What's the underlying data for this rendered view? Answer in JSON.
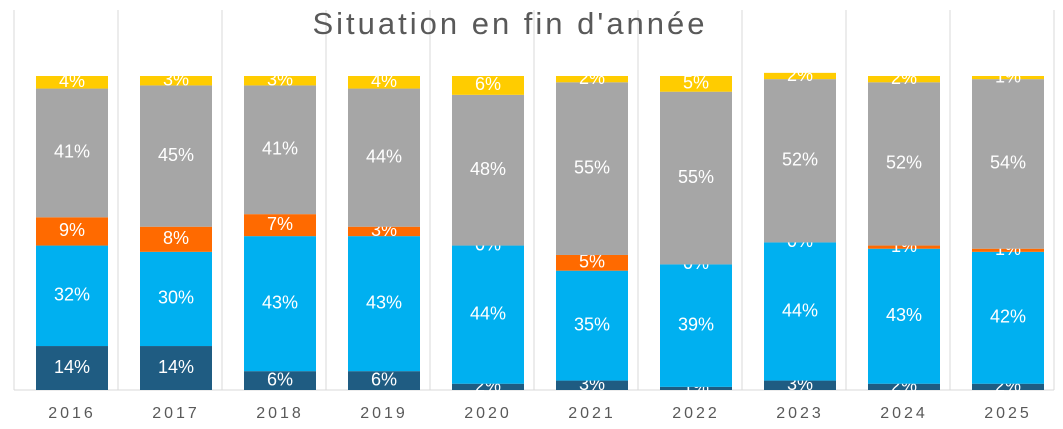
{
  "chart_data": {
    "type": "stacked_bar",
    "title": "Situation en fin d'année",
    "categories": [
      "2016",
      "2017",
      "2018",
      "2019",
      "2020",
      "2021",
      "2022",
      "2023",
      "2024",
      "2025"
    ],
    "ylim": [
      0,
      100
    ],
    "series": [
      {
        "color": "#1f5c82",
        "values": [
          14,
          14,
          6,
          6,
          2,
          3,
          1,
          3,
          2,
          2
        ],
        "value_labels": [
          "14%",
          "14%",
          "6%",
          "6%",
          "2%",
          "3%",
          "1%",
          "3%",
          "2%",
          "2%"
        ]
      },
      {
        "color": "#00b0f0",
        "values": [
          32,
          30,
          43,
          43,
          44,
          35,
          39,
          44,
          43,
          42
        ],
        "value_labels": [
          "32%",
          "30%",
          "43%",
          "43%",
          "44%",
          "35%",
          "39%",
          "44%",
          "43%",
          "42%"
        ]
      },
      {
        "color": "#ff6a00",
        "values": [
          9,
          8,
          7,
          3,
          0,
          5,
          0,
          0,
          1,
          1
        ],
        "value_labels": [
          "9%",
          "8%",
          "7%",
          "3%",
          "0%",
          "5%",
          "0%",
          "0%",
          "1%",
          "1%"
        ]
      },
      {
        "color": "#a6a6a6",
        "values": [
          41,
          45,
          41,
          44,
          48,
          55,
          55,
          52,
          52,
          54
        ],
        "value_labels": [
          "41%",
          "45%",
          "41%",
          "44%",
          "48%",
          "55%",
          "55%",
          "52%",
          "52%",
          "54%"
        ]
      },
      {
        "color": "#ffcc00",
        "values": [
          4,
          3,
          3,
          4,
          6,
          2,
          5,
          2,
          2,
          1
        ],
        "value_labels": [
          "4%",
          "3%",
          "3%",
          "4%",
          "6%",
          "2%",
          "5%",
          "2%",
          "2%",
          "1%"
        ]
      }
    ]
  }
}
